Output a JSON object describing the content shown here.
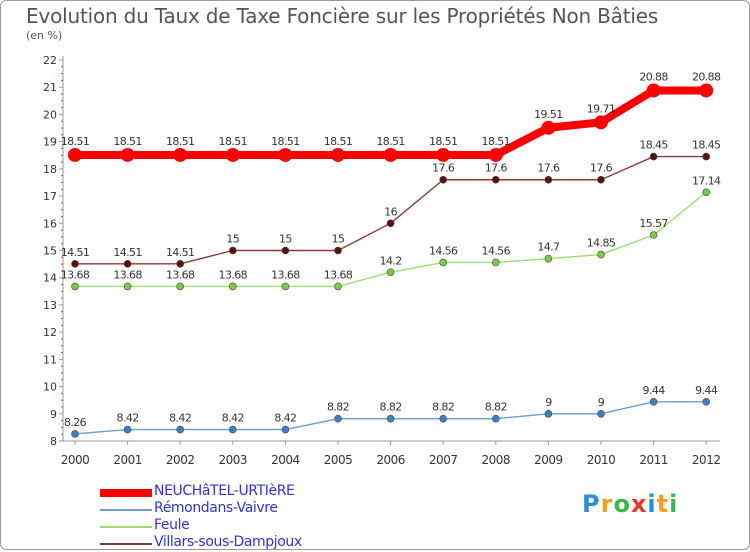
{
  "header": {
    "title": "Evolution du Taux de Taxe Foncière sur les Propriétés Non Bâties",
    "subtitle": "(en %)"
  },
  "logo": {
    "letters": [
      "P",
      "r",
      "o",
      "x",
      "i",
      "t",
      "i"
    ],
    "colors": [
      "#2b8fd6",
      "#f0a020",
      "#3cb84a",
      "#e03a2a",
      "#2b8fd6",
      "#f0a020",
      "#3cb84a"
    ]
  },
  "chart_data": {
    "type": "line",
    "title": "Evolution du Taux de Taxe Foncière sur les Propriétés Non Bâties",
    "ylabel": "(en %)",
    "xlabel": "",
    "x": [
      "2000",
      "2001",
      "2002",
      "2003",
      "2004",
      "2005",
      "2006",
      "2007",
      "2008",
      "2009",
      "2010",
      "2011",
      "2012"
    ],
    "ylim": [
      8,
      22
    ],
    "yticks": [
      "8",
      "9",
      "10",
      "11",
      "12",
      "13",
      "14",
      "15",
      "16",
      "17",
      "18",
      "19",
      "20",
      "21",
      "22"
    ],
    "grid": false,
    "legend_position": "bottom-left",
    "series": [
      {
        "name": "NEUCHâTEL-URTIèRE",
        "color": "#ff0000",
        "legend_text_color": "#3333cc",
        "emphasis": "thick",
        "values": [
          18.51,
          18.51,
          18.51,
          18.51,
          18.51,
          18.51,
          18.51,
          18.51,
          18.51,
          19.51,
          19.71,
          20.88,
          20.88
        ],
        "labels": [
          "18.51",
          "18.51",
          "18.51",
          "18.51",
          "18.51",
          "18.51",
          "18.51",
          "18.51",
          "18.51",
          "19.51",
          "19.71",
          "20.88",
          "20.88"
        ]
      },
      {
        "name": "Rémondans-Vaivre",
        "color": "#6a9ccc",
        "marker_color": "#3f7fc0",
        "legend_text_color": "#3333cc",
        "values": [
          8.26,
          8.42,
          8.42,
          8.42,
          8.42,
          8.82,
          8.82,
          8.82,
          8.82,
          9,
          9,
          9.44,
          9.44
        ],
        "labels": [
          "8.26",
          "8.42",
          "8.42",
          "8.42",
          "8.42",
          "8.82",
          "8.82",
          "8.82",
          "8.82",
          "9",
          "9",
          "9.44",
          "9.44"
        ]
      },
      {
        "name": "Feule",
        "color": "#9fdc74",
        "marker_color": "#7acb45",
        "legend_text_color": "#3333cc",
        "values": [
          13.68,
          13.68,
          13.68,
          13.68,
          13.68,
          13.68,
          14.2,
          14.56,
          14.56,
          14.7,
          14.85,
          15.57,
          17.14
        ],
        "labels": [
          "13.68",
          "13.68",
          "13.68",
          "13.68",
          "13.68",
          "13.68",
          "14.2",
          "14.56",
          "14.56",
          "14.7",
          "14.85",
          "15.57",
          "17.14"
        ]
      },
      {
        "name": "Villars-sous-Dampjoux",
        "color": "#8b3a3a",
        "marker_color": "#5a1010",
        "legend_text_color": "#3333cc",
        "values": [
          14.51,
          14.51,
          14.51,
          15,
          15,
          15,
          16,
          17.6,
          17.6,
          17.6,
          17.6,
          18.45,
          18.45
        ],
        "labels": [
          "14.51",
          "14.51",
          "14.51",
          "15",
          "15",
          "15",
          "16",
          "17.6",
          "17.6",
          "17.6",
          "17.6",
          "18.45",
          "18.45"
        ]
      }
    ]
  }
}
